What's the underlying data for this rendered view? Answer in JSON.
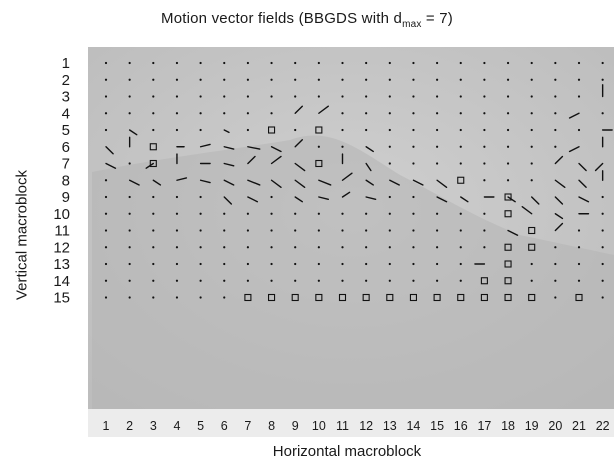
{
  "chart_data": {
    "type": "scatter",
    "title_main": "Motion vector fields  (BBGDS with d",
    "title_sub": "max",
    "title_tail": " = 7)",
    "xlabel": "Horizontal macroblock",
    "ylabel": "Vertical macroblock",
    "x_ticks": [
      "1",
      "2",
      "3",
      "4",
      "5",
      "6",
      "7",
      "8",
      "9",
      "10",
      "11",
      "12",
      "13",
      "14",
      "15",
      "16",
      "17",
      "18",
      "19",
      "20",
      "21",
      "22"
    ],
    "y_ticks": [
      "1",
      "2",
      "3",
      "4",
      "5",
      "6",
      "7",
      "8",
      "9",
      "10",
      "11",
      "12",
      "13",
      "14",
      "15"
    ],
    "xlim": [
      1,
      22
    ],
    "ylim": [
      1,
      15
    ],
    "grid": false,
    "markers": {
      "dot": "zero motion vector",
      "square": "block marker",
      "arrow": "motion vector"
    },
    "squares": [
      [
        8,
        5
      ],
      [
        10,
        5
      ],
      [
        3,
        6
      ],
      [
        3,
        7
      ],
      [
        10,
        7
      ],
      [
        16,
        8
      ],
      [
        18,
        9
      ],
      [
        18,
        10
      ],
      [
        19,
        11
      ],
      [
        18,
        12
      ],
      [
        19,
        12
      ],
      [
        18,
        13
      ],
      [
        17,
        14
      ],
      [
        18,
        14
      ],
      [
        7,
        15
      ],
      [
        8,
        15
      ],
      [
        9,
        15
      ],
      [
        10,
        15
      ],
      [
        11,
        15
      ],
      [
        12,
        15
      ],
      [
        13,
        15
      ],
      [
        14,
        15
      ],
      [
        15,
        15
      ],
      [
        16,
        15
      ],
      [
        17,
        15
      ],
      [
        18,
        15
      ],
      [
        19,
        15
      ],
      [
        21,
        15
      ]
    ],
    "vectors": [
      [
        22,
        3,
        0,
        -0.5
      ],
      [
        9,
        4,
        0.3,
        -0.3
      ],
      [
        10,
        4,
        0.4,
        -0.3
      ],
      [
        21,
        4,
        -0.4,
        0.2
      ],
      [
        2,
        5,
        0.3,
        0.2
      ],
      [
        6,
        5,
        0.2,
        0.1
      ],
      [
        22,
        5,
        0.4,
        0
      ],
      [
        1,
        6,
        0.3,
        0.3
      ],
      [
        2,
        6,
        0,
        -0.4
      ],
      [
        4,
        6,
        0.3,
        0
      ],
      [
        5,
        6,
        0.4,
        -0.1
      ],
      [
        6,
        6,
        0.4,
        0.1
      ],
      [
        7,
        6,
        0.5,
        0.1
      ],
      [
        8,
        6,
        0.4,
        0.2
      ],
      [
        9,
        6,
        0.3,
        -0.3
      ],
      [
        12,
        6,
        0.3,
        0.2
      ],
      [
        21,
        6,
        -0.4,
        0.2
      ],
      [
        22,
        6,
        0,
        -0.4
      ],
      [
        1,
        7,
        0.4,
        0.2
      ],
      [
        3,
        7,
        -0.3,
        0.2
      ],
      [
        4,
        7,
        0,
        -0.4
      ],
      [
        5,
        7,
        0.4,
        0
      ],
      [
        6,
        7,
        0.4,
        0.1
      ],
      [
        7,
        7,
        0.3,
        -0.3
      ],
      [
        8,
        7,
        0.4,
        -0.3
      ],
      [
        9,
        7,
        0.4,
        0.3
      ],
      [
        11,
        7,
        0,
        -0.4
      ],
      [
        12,
        7,
        0.2,
        0.3
      ],
      [
        20,
        7,
        0.3,
        -0.3
      ],
      [
        21,
        7,
        0.3,
        0.3
      ],
      [
        22,
        7,
        -0.3,
        0.3
      ],
      [
        2,
        8,
        0.4,
        0.2
      ],
      [
        3,
        8,
        0.3,
        0.2
      ],
      [
        4,
        8,
        0.4,
        -0.1
      ],
      [
        5,
        8,
        0.4,
        0.1
      ],
      [
        6,
        8,
        0.4,
        0.2
      ],
      [
        7,
        8,
        0.5,
        0.2
      ],
      [
        8,
        8,
        0.4,
        0.3
      ],
      [
        9,
        8,
        0.4,
        0.3
      ],
      [
        10,
        8,
        0.5,
        0.2
      ],
      [
        11,
        8,
        0.4,
        -0.3
      ],
      [
        12,
        8,
        0.3,
        0.2
      ],
      [
        13,
        8,
        0.4,
        0.2
      ],
      [
        14,
        8,
        0.4,
        0.2
      ],
      [
        15,
        8,
        0.4,
        0.3
      ],
      [
        20,
        8,
        0.4,
        0.3
      ],
      [
        21,
        8,
        0.3,
        0.3
      ],
      [
        22,
        8,
        0,
        -0.4
      ],
      [
        6,
        9,
        0.3,
        0.3
      ],
      [
        7,
        9,
        0.4,
        0.2
      ],
      [
        9,
        9,
        0.3,
        0.2
      ],
      [
        10,
        9,
        0.4,
        0.1
      ],
      [
        11,
        9,
        0.3,
        -0.2
      ],
      [
        12,
        9,
        0.4,
        0.1
      ],
      [
        15,
        9,
        0.4,
        0.2
      ],
      [
        16,
        9,
        0.3,
        0.2
      ],
      [
        17,
        9,
        0.4,
        0
      ],
      [
        18,
        9,
        0.3,
        0.2
      ],
      [
        19,
        9,
        0.3,
        0.3
      ],
      [
        20,
        9,
        0.3,
        0.3
      ],
      [
        21,
        9,
        0.4,
        0.2
      ],
      [
        19,
        10,
        -0.4,
        -0.3
      ],
      [
        20,
        10,
        0.3,
        0.2
      ],
      [
        21,
        10,
        0.4,
        0
      ],
      [
        18,
        11,
        0.4,
        0.2
      ],
      [
        20,
        11,
        0.3,
        -0.3
      ],
      [
        17,
        13,
        -0.4,
        0
      ]
    ]
  }
}
